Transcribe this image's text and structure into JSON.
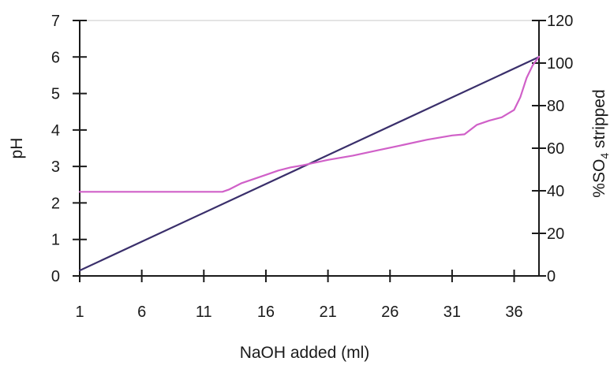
{
  "chart_data": {
    "type": "line",
    "xlabel": "NaOH added (m",
    "xlabel_unit_glyph": "l",
    "xlabel_close": ")",
    "ylabel_left": "pH",
    "ylabel_right_parts": [
      "%SO",
      "4",
      " stripped"
    ],
    "x_ticks": [
      "1",
      "6",
      "11",
      "16",
      "21",
      "26",
      "31",
      "36"
    ],
    "y_left_ticks": [
      "0",
      "1",
      "2",
      "3",
      "4",
      "5",
      "6",
      "7"
    ],
    "y_right_ticks": [
      "0",
      "20",
      "40",
      "60",
      "80",
      "100",
      "120"
    ],
    "xlim": [
      1,
      38
    ],
    "y_left_lim": [
      0,
      7
    ],
    "y_right_lim": [
      0,
      120
    ],
    "grid": false,
    "series": [
      {
        "axis": "left",
        "color": "#3a2f6b",
        "x": [
          1,
          38
        ],
        "y": [
          0.15,
          6.0
        ]
      },
      {
        "axis": "right",
        "color": "#d060c8",
        "x": [
          1,
          12,
          12.5,
          13,
          14,
          15,
          16,
          17,
          18,
          19,
          21,
          23,
          25,
          27,
          29,
          31,
          32,
          33,
          34,
          35,
          36,
          36.5,
          37,
          37.5,
          38
        ],
        "y": [
          39.5,
          39.5,
          39.5,
          40.5,
          43.5,
          45.5,
          47.5,
          49.5,
          51,
          52,
          54.5,
          56.5,
          59,
          61.5,
          64,
          66,
          66.5,
          71,
          73,
          74.5,
          78,
          84,
          93,
          99,
          103
        ]
      }
    ]
  }
}
